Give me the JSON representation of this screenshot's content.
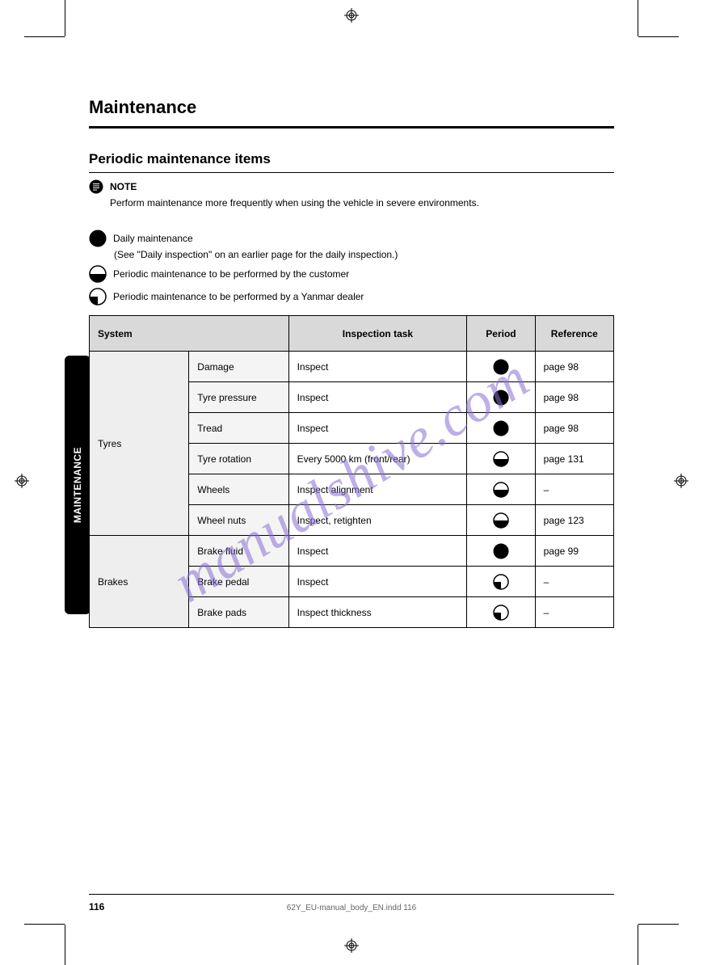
{
  "page": {
    "title": "Maintenance",
    "subtitle": "Periodic maintenance items",
    "note_label": "NOTE",
    "note_text": "Perform maintenance more frequently when using the vehicle in severe environments.",
    "legend": {
      "full": {
        "label": "Daily maintenance",
        "desc": "(See \"Daily inspection\" on an earlier page for the daily inspection.)"
      },
      "half": {
        "label": "Periodic maintenance to be performed by the customer"
      },
      "quarter": {
        "label": "Periodic maintenance to be performed by a Yanmar dealer"
      }
    },
    "table": {
      "headers": {
        "category": "System",
        "task": "Inspection task",
        "period": "Period",
        "ref": "Reference"
      },
      "col_widths": [
        "19%",
        "19%",
        "34%",
        "13%",
        "15%"
      ],
      "rows": [
        {
          "category": "Tyres",
          "item": "Damage",
          "task": "Inspect",
          "period": "full",
          "ref": "page 98",
          "rowspan": 6
        },
        {
          "item": "Tyre pressure",
          "task": "Inspect",
          "period": "full",
          "ref": "page 98"
        },
        {
          "item": "Tread",
          "task": "Inspect",
          "period": "full",
          "ref": "page 98"
        },
        {
          "item": "Tyre rotation",
          "task": "Every 5000 km (front/rear)",
          "period": "half",
          "ref": "page 131"
        },
        {
          "item": "Wheels",
          "task": "Inspect alignment",
          "period": "half",
          "ref": "–"
        },
        {
          "item": "Wheel nuts",
          "task": "Inspect, retighten",
          "period": "half",
          "ref": "page 123"
        },
        {
          "category": "Brakes",
          "item": "Brake fluid",
          "task": "Inspect",
          "period": "full",
          "ref": "page 99",
          "rowspan": 3
        },
        {
          "item": "Brake pedal",
          "task": "Inspect",
          "period": "quarter",
          "ref": "–"
        },
        {
          "item": "Brake pads",
          "task": "Inspect thickness",
          "period": "quarter",
          "ref": "–"
        }
      ]
    },
    "side_tab": "MAINTENANCE",
    "page_number": "116",
    "doc_id": "62Y_EU-manual_body_EN.indd   116",
    "watermark": "manualshive.com",
    "colors": {
      "header_bg": "#d9d9d9",
      "cat_bg": "#eeeeee",
      "item_bg": "#f4f4f4",
      "wm": "#8a6fd4"
    },
    "pie_fills": {
      "full": 1.0,
      "half": 0.5,
      "quarter": 0.25
    }
  }
}
